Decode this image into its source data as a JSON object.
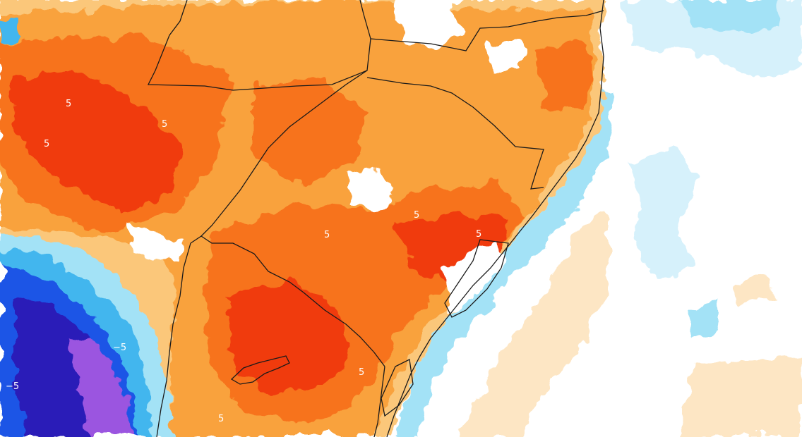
{
  "map": {
    "type": "temperature-anomaly-contour-map",
    "palette": {
      "strong_warm": "#f03a10",
      "warm": "#f7731e",
      "mild_warm": "#f9a23d",
      "light_warm": "#fbc77a",
      "faint_warm": "#fde6c4",
      "neutral": "#ffffff",
      "faint_cool": "#d6f1fb",
      "light_cool": "#a3e2f6",
      "cool": "#42b6ee",
      "strong_cool": "#1f55e6",
      "deep_cool": "#2a1fb8",
      "extreme_cool": "#9b55e0",
      "border": "#1a1a1a",
      "contour": "#ffffff"
    },
    "contour_labels": [
      "5",
      "5",
      "5",
      "5",
      "5",
      "5",
      "5",
      "5",
      "−5",
      "−5"
    ]
  }
}
